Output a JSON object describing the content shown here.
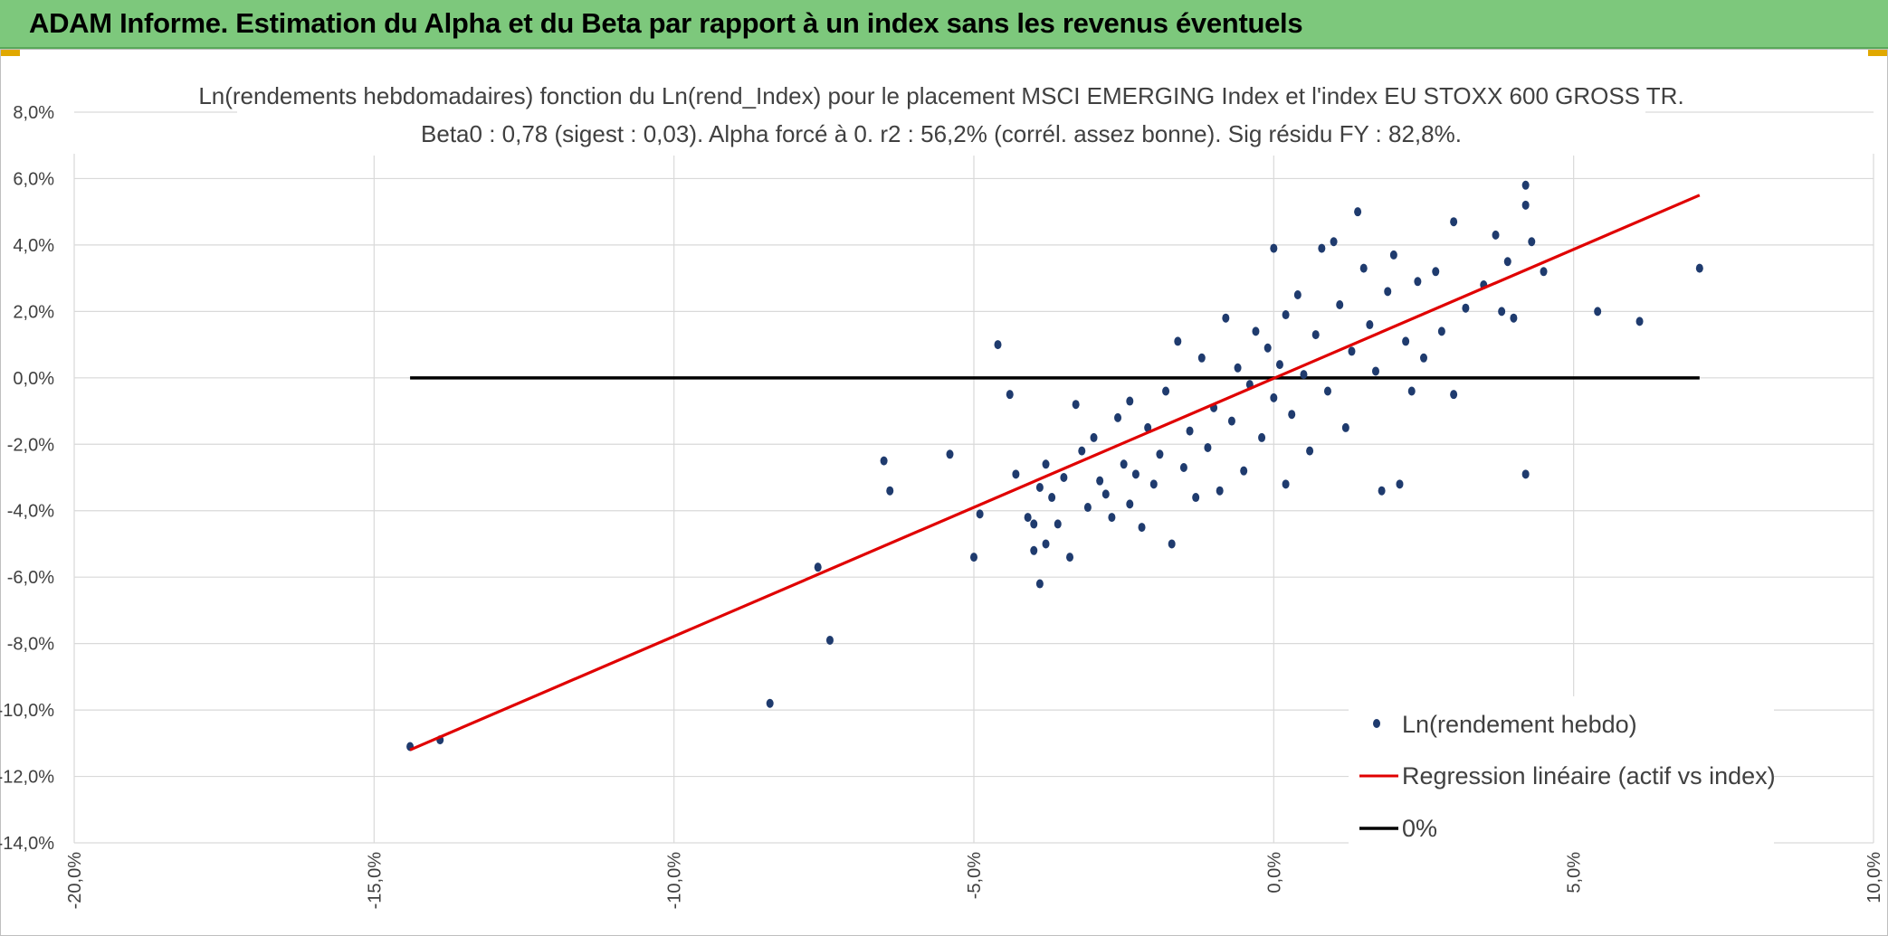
{
  "header": {
    "title": "ADAM Informe. Estimation du Alpha et du Beta par rapport à un index sans les revenus éventuels",
    "background_color": "#7dc87c"
  },
  "chart_data": {
    "type": "scatter",
    "title_line1": "Ln(rendements hebdomadaires) fonction du Ln(rend_Index) pour le placement MSCI EMERGING Index et l'index EU STOXX 600 GROSS TR.",
    "title_line2": "Beta0 : 0,78 (sigest : 0,03). Alpha forcé à 0. r2 : 56,2% (corrél. assez bonne). Sig résidu FY : 82,8%.",
    "xlim": [
      -20,
      10
    ],
    "ylim": [
      -14,
      8
    ],
    "x_ticks": [
      -20,
      -15,
      -10,
      -5,
      0,
      5,
      10
    ],
    "x_tick_labels": [
      "-20,0%",
      "-15,0%",
      "-10,0%",
      "-5,0%",
      "0,0%",
      "5,0%",
      "10,0%"
    ],
    "y_ticks": [
      8,
      6,
      4,
      2,
      0,
      -2,
      -4,
      -6,
      -8,
      -10,
      -12,
      -14
    ],
    "y_tick_labels": [
      "8,0%",
      "6,0%",
      "4,0%",
      "2,0%",
      "0,0%",
      "-2,0%",
      "-4,0%",
      "-6,0%",
      "-8,0%",
      "-10,0%",
      "-12,0%",
      "-14,0%"
    ],
    "grid": true,
    "legend_position": "bottom-right",
    "series": [
      {
        "name": "Ln(rendement hebdo)",
        "kind": "scatter",
        "color": "#1f3b6e",
        "points": [
          [
            -14.4,
            -11.1
          ],
          [
            -13.9,
            -10.9
          ],
          [
            -8.4,
            -9.8
          ],
          [
            -7.4,
            -7.9
          ],
          [
            -7.6,
            -5.7
          ],
          [
            -6.5,
            -2.5
          ],
          [
            -6.4,
            -3.4
          ],
          [
            -5.4,
            -2.3
          ],
          [
            -5.0,
            -5.4
          ],
          [
            -4.9,
            -4.1
          ],
          [
            -4.6,
            1.0
          ],
          [
            -4.4,
            -0.5
          ],
          [
            -4.3,
            -2.9
          ],
          [
            -4.1,
            -4.2
          ],
          [
            -4.0,
            -5.2
          ],
          [
            -4.0,
            -4.4
          ],
          [
            -3.9,
            -3.3
          ],
          [
            -3.9,
            -6.2
          ],
          [
            -3.8,
            -2.6
          ],
          [
            -3.8,
            -5.0
          ],
          [
            -3.7,
            -3.6
          ],
          [
            -3.6,
            -4.4
          ],
          [
            -3.5,
            -3.0
          ],
          [
            -3.4,
            -5.4
          ],
          [
            -3.3,
            -0.8
          ],
          [
            -3.2,
            -2.2
          ],
          [
            -3.1,
            -3.9
          ],
          [
            -3.0,
            -1.8
          ],
          [
            -2.9,
            -3.1
          ],
          [
            -2.8,
            -3.5
          ],
          [
            -2.7,
            -4.2
          ],
          [
            -2.6,
            -1.2
          ],
          [
            -2.5,
            -2.6
          ],
          [
            -2.4,
            -3.8
          ],
          [
            -2.4,
            -0.7
          ],
          [
            -2.3,
            -2.9
          ],
          [
            -2.2,
            -4.5
          ],
          [
            -2.1,
            -1.5
          ],
          [
            -2.0,
            -3.2
          ],
          [
            -1.9,
            -2.3
          ],
          [
            -1.8,
            -0.4
          ],
          [
            -1.7,
            -5.0
          ],
          [
            -1.6,
            1.1
          ],
          [
            -1.5,
            -2.7
          ],
          [
            -1.4,
            -1.6
          ],
          [
            -1.3,
            -3.6
          ],
          [
            -1.2,
            0.6
          ],
          [
            -1.1,
            -2.1
          ],
          [
            -1.0,
            -0.9
          ],
          [
            -0.9,
            -3.4
          ],
          [
            -0.8,
            1.8
          ],
          [
            -0.7,
            -1.3
          ],
          [
            -0.6,
            0.3
          ],
          [
            -0.5,
            -2.8
          ],
          [
            -0.4,
            -0.2
          ],
          [
            -0.3,
            1.4
          ],
          [
            -0.2,
            -1.8
          ],
          [
            -0.1,
            0.9
          ],
          [
            0.0,
            3.9
          ],
          [
            0.0,
            -0.6
          ],
          [
            0.1,
            0.4
          ],
          [
            0.2,
            -3.2
          ],
          [
            0.2,
            1.9
          ],
          [
            0.3,
            -1.1
          ],
          [
            0.4,
            2.5
          ],
          [
            0.5,
            0.1
          ],
          [
            0.6,
            -2.2
          ],
          [
            0.7,
            1.3
          ],
          [
            0.8,
            3.9
          ],
          [
            0.9,
            -0.4
          ],
          [
            1.0,
            4.1
          ],
          [
            1.1,
            2.2
          ],
          [
            1.2,
            -1.5
          ],
          [
            1.3,
            0.8
          ],
          [
            1.4,
            5.0
          ],
          [
            1.5,
            3.3
          ],
          [
            1.6,
            1.6
          ],
          [
            1.7,
            0.2
          ],
          [
            1.8,
            -3.4
          ],
          [
            1.9,
            2.6
          ],
          [
            2.0,
            3.7
          ],
          [
            2.1,
            -3.2
          ],
          [
            2.2,
            1.1
          ],
          [
            2.3,
            -0.4
          ],
          [
            2.4,
            2.9
          ],
          [
            2.5,
            0.6
          ],
          [
            2.7,
            3.2
          ],
          [
            2.8,
            1.4
          ],
          [
            3.0,
            4.7
          ],
          [
            3.0,
            -0.5
          ],
          [
            3.2,
            2.1
          ],
          [
            3.5,
            2.8
          ],
          [
            3.7,
            4.3
          ],
          [
            3.8,
            2.0
          ],
          [
            3.9,
            3.5
          ],
          [
            4.0,
            1.8
          ],
          [
            4.2,
            5.8
          ],
          [
            4.2,
            5.2
          ],
          [
            4.2,
            -2.9
          ],
          [
            4.3,
            4.1
          ],
          [
            4.5,
            3.2
          ],
          [
            5.4,
            2.0
          ],
          [
            6.1,
            1.7
          ],
          [
            7.1,
            3.3
          ]
        ]
      },
      {
        "name": "Regression linéaire (actif vs index)",
        "kind": "line",
        "color": "#e00000",
        "x": [
          -14.4,
          7.1
        ],
        "y": [
          -11.2,
          5.5
        ]
      },
      {
        "name": "0%",
        "kind": "line",
        "color": "#000000",
        "x": [
          -14.4,
          7.1
        ],
        "y": [
          0,
          0
        ]
      }
    ]
  }
}
